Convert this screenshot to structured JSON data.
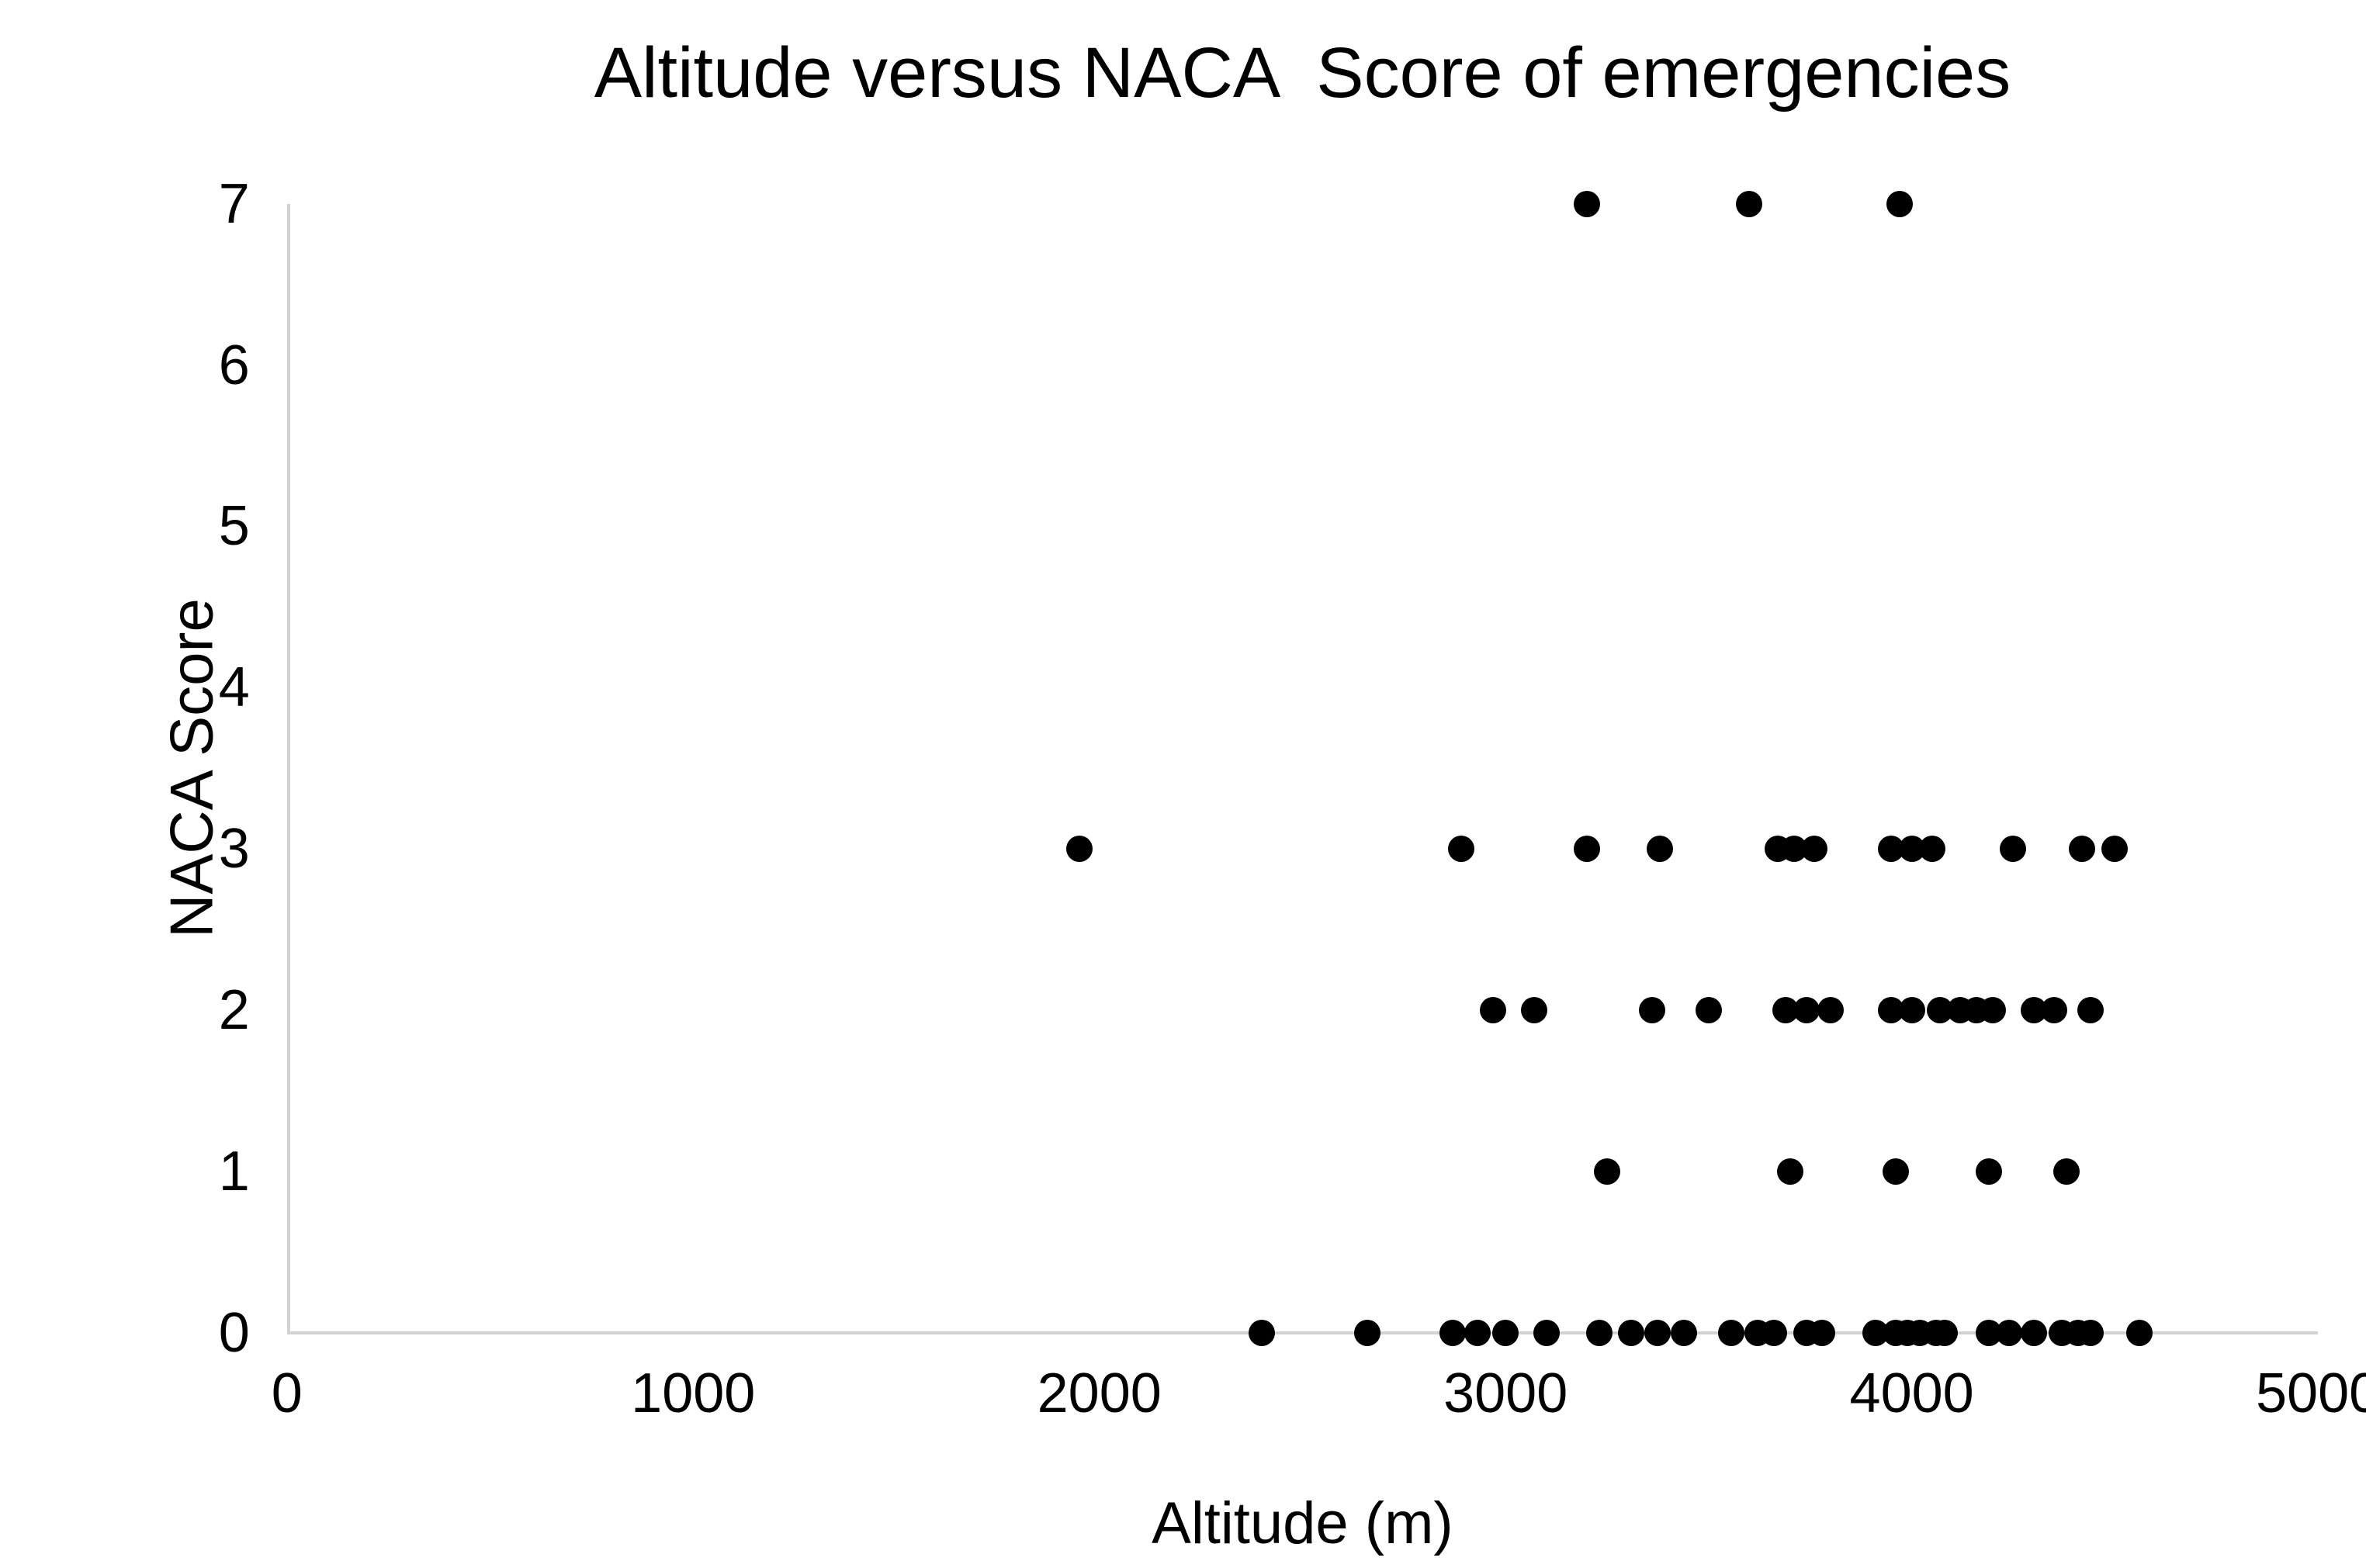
{
  "chart_data": {
    "type": "scatter",
    "title": "Altitude versus NACA  Score of emergencies",
    "xlabel": "Altitude (m)",
    "ylabel": "NACA Score",
    "xlim": [
      0,
      5000
    ],
    "ylim": [
      0,
      7
    ],
    "x_ticks": [
      0,
      1000,
      2000,
      3000,
      4000,
      5000
    ],
    "y_ticks": [
      0,
      1,
      2,
      3,
      4,
      5,
      6,
      7
    ],
    "grid": false,
    "legend_position": "none",
    "marker_color": "#000000",
    "axis_line_color": "#d2d2d2",
    "text_color": "#000000",
    "background_color": "#ffffff",
    "groups": [
      {
        "naca_score": 0,
        "altitudes": [
          2400,
          2660,
          2870,
          2930,
          3000,
          3100,
          3230,
          3310,
          3375,
          3440,
          3555,
          3620,
          3660,
          3740,
          3780,
          3910,
          3960,
          3990,
          4020,
          4060,
          4080,
          4190,
          4240,
          4300,
          4370,
          4410,
          4440,
          4560
        ]
      },
      {
        "naca_score": 1,
        "altitudes": [
          3250,
          3700,
          3960,
          4190,
          4380
        ]
      },
      {
        "naca_score": 2,
        "altitudes": [
          2970,
          3070,
          3360,
          3500,
          3690,
          3740,
          3800,
          3950,
          4000,
          4070,
          4120,
          4160,
          4200,
          4300,
          4350,
          4440
        ]
      },
      {
        "naca_score": 3,
        "altitudes": [
          1950,
          2890,
          3200,
          3380,
          3670,
          3710,
          3760,
          3950,
          4000,
          4050,
          4250,
          4420,
          4500
        ]
      },
      {
        "naca_score": 7,
        "altitudes": [
          3200,
          3600,
          3970
        ]
      }
    ]
  }
}
